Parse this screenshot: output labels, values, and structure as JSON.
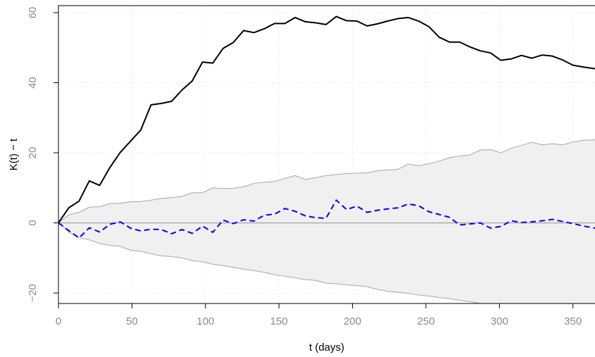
{
  "chart_data": {
    "type": "line",
    "title": "",
    "xlabel": "t (days)",
    "ylabel": "K(t) − t",
    "xlim": [
      0,
      365
    ],
    "ylim": [
      -23,
      62
    ],
    "x_ticks": [
      0,
      50,
      100,
      150,
      200,
      250,
      300,
      350
    ],
    "x_tick_labels": [
      "0",
      "50",
      "100",
      "150",
      "200",
      "250",
      "300",
      "350"
    ],
    "y_ticks": [
      -20,
      0,
      20,
      40,
      60
    ],
    "y_tick_labels": [
      "−20",
      "0",
      "20",
      "40",
      "60"
    ],
    "grid": true,
    "legend": "none",
    "reference_line": {
      "y": 0,
      "color": "#a6a6a6"
    },
    "envelope": {
      "fill": "#f0f0f0",
      "stroke": "#a6a6a6",
      "upper": [
        [
          0,
          0
        ],
        [
          7,
          2.3
        ],
        [
          14,
          3.0
        ],
        [
          21,
          4.5
        ],
        [
          28,
          4.6
        ],
        [
          35,
          5.5
        ],
        [
          42,
          5.6
        ],
        [
          49,
          6.0
        ],
        [
          56,
          6.1
        ],
        [
          63,
          6.5
        ],
        [
          70,
          7.0
        ],
        [
          77,
          7.2
        ],
        [
          84,
          7.6
        ],
        [
          91,
          8.6
        ],
        [
          98,
          8.6
        ],
        [
          105,
          10.0
        ],
        [
          112,
          9.8
        ],
        [
          119,
          9.9
        ],
        [
          126,
          10.3
        ],
        [
          133,
          11.3
        ],
        [
          140,
          11.6
        ],
        [
          147,
          11.8
        ],
        [
          154,
          12.7
        ],
        [
          161,
          13.5
        ],
        [
          168,
          12.4
        ],
        [
          175,
          12.9
        ],
        [
          182,
          13.5
        ],
        [
          189,
          13.8
        ],
        [
          196,
          14.1
        ],
        [
          203,
          14.2
        ],
        [
          210,
          14.3
        ],
        [
          217,
          14.9
        ],
        [
          224,
          15.1
        ],
        [
          231,
          15.3
        ],
        [
          238,
          16.8
        ],
        [
          245,
          16.3
        ],
        [
          252,
          16.9
        ],
        [
          259,
          17.6
        ],
        [
          266,
          18.6
        ],
        [
          273,
          19.1
        ],
        [
          280,
          19.4
        ],
        [
          287,
          20.8
        ],
        [
          294,
          20.9
        ],
        [
          301,
          20.0
        ],
        [
          308,
          21.3
        ],
        [
          315,
          22.1
        ],
        [
          322,
          23.0
        ],
        [
          329,
          22.3
        ],
        [
          336,
          22.6
        ],
        [
          343,
          22.3
        ],
        [
          350,
          23.1
        ],
        [
          357,
          23.6
        ],
        [
          365,
          23.7
        ]
      ],
      "lower": [
        [
          0,
          0
        ],
        [
          7,
          -2.6
        ],
        [
          14,
          -4.3
        ],
        [
          21,
          -4.8
        ],
        [
          28,
          -5.9
        ],
        [
          35,
          -6.4
        ],
        [
          42,
          -6.7
        ],
        [
          49,
          -7.8
        ],
        [
          56,
          -8.1
        ],
        [
          63,
          -8.8
        ],
        [
          70,
          -9.4
        ],
        [
          77,
          -9.6
        ],
        [
          84,
          -10.0
        ],
        [
          91,
          -10.8
        ],
        [
          98,
          -11.1
        ],
        [
          105,
          -11.8
        ],
        [
          112,
          -12.2
        ],
        [
          119,
          -12.7
        ],
        [
          126,
          -13.2
        ],
        [
          133,
          -13.6
        ],
        [
          140,
          -14.1
        ],
        [
          147,
          -14.8
        ],
        [
          154,
          -15.2
        ],
        [
          161,
          -15.7
        ],
        [
          168,
          -16.2
        ],
        [
          175,
          -16.4
        ],
        [
          182,
          -17.2
        ],
        [
          189,
          -17.4
        ],
        [
          196,
          -17.7
        ],
        [
          203,
          -17.9
        ],
        [
          210,
          -18.2
        ],
        [
          217,
          -19.0
        ],
        [
          224,
          -19.5
        ],
        [
          231,
          -19.8
        ],
        [
          238,
          -20.1
        ],
        [
          245,
          -20.6
        ],
        [
          252,
          -20.9
        ],
        [
          259,
          -21.3
        ],
        [
          266,
          -21.6
        ],
        [
          273,
          -22.1
        ],
        [
          280,
          -22.5
        ],
        [
          287,
          -23.0
        ],
        [
          294,
          -23.5
        ],
        [
          301,
          -24.0
        ],
        [
          308,
          -24.5
        ],
        [
          315,
          -25.0
        ],
        [
          322,
          -25.5
        ],
        [
          329,
          -26.0
        ],
        [
          336,
          -26.5
        ],
        [
          343,
          -27.0
        ],
        [
          350,
          -27.5
        ],
        [
          357,
          -28.0
        ],
        [
          365,
          -28.5
        ]
      ]
    },
    "series": [
      {
        "style": "solid",
        "color": "#000000",
        "points": [
          [
            0,
            0
          ],
          [
            7,
            4.3
          ],
          [
            14,
            6.2
          ],
          [
            21,
            12.0
          ],
          [
            28,
            10.7
          ],
          [
            35,
            15.8
          ],
          [
            42,
            20.1
          ],
          [
            49,
            23.3
          ],
          [
            56,
            26.5
          ],
          [
            63,
            33.7
          ],
          [
            70,
            34.1
          ],
          [
            77,
            34.7
          ],
          [
            84,
            37.9
          ],
          [
            91,
            40.5
          ],
          [
            98,
            45.9
          ],
          [
            105,
            45.6
          ],
          [
            112,
            49.8
          ],
          [
            119,
            51.5
          ],
          [
            126,
            54.9
          ],
          [
            133,
            54.3
          ],
          [
            140,
            55.4
          ],
          [
            147,
            56.9
          ],
          [
            154,
            56.9
          ],
          [
            161,
            58.6
          ],
          [
            168,
            57.4
          ],
          [
            175,
            57.1
          ],
          [
            182,
            56.6
          ],
          [
            189,
            58.9
          ],
          [
            196,
            57.7
          ],
          [
            203,
            57.6
          ],
          [
            210,
            56.2
          ],
          [
            217,
            56.8
          ],
          [
            224,
            57.6
          ],
          [
            231,
            58.3
          ],
          [
            238,
            58.6
          ],
          [
            245,
            57.6
          ],
          [
            252,
            56.0
          ],
          [
            259,
            53.0
          ],
          [
            266,
            51.6
          ],
          [
            273,
            51.6
          ],
          [
            280,
            50.2
          ],
          [
            287,
            49.1
          ],
          [
            294,
            48.5
          ],
          [
            301,
            46.4
          ],
          [
            308,
            46.8
          ],
          [
            315,
            47.8
          ],
          [
            322,
            47.0
          ],
          [
            329,
            47.9
          ],
          [
            336,
            47.6
          ],
          [
            343,
            46.5
          ],
          [
            350,
            45.0
          ],
          [
            357,
            44.5
          ],
          [
            365,
            44.0
          ]
        ]
      },
      {
        "style": "dashed",
        "color": "#0000ff",
        "points": [
          [
            0,
            0
          ],
          [
            7,
            -2.2
          ],
          [
            14,
            -4.3
          ],
          [
            21,
            -1.4
          ],
          [
            28,
            -2.6
          ],
          [
            35,
            -0.4
          ],
          [
            42,
            0.3
          ],
          [
            49,
            -1.5
          ],
          [
            56,
            -2.3
          ],
          [
            63,
            -1.8
          ],
          [
            70,
            -1.9
          ],
          [
            77,
            -3.1
          ],
          [
            84,
            -1.9
          ],
          [
            91,
            -3.0
          ],
          [
            98,
            -0.9
          ],
          [
            105,
            -2.7
          ],
          [
            112,
            0.8
          ],
          [
            119,
            -0.2
          ],
          [
            126,
            0.9
          ],
          [
            133,
            0.5
          ],
          [
            140,
            2.2
          ],
          [
            147,
            2.5
          ],
          [
            154,
            4.1
          ],
          [
            161,
            3.3
          ],
          [
            168,
            2.0
          ],
          [
            175,
            1.5
          ],
          [
            182,
            1.3
          ],
          [
            189,
            6.5
          ],
          [
            196,
            3.8
          ],
          [
            203,
            4.8
          ],
          [
            210,
            3.0
          ],
          [
            217,
            3.6
          ],
          [
            224,
            4.0
          ],
          [
            231,
            4.3
          ],
          [
            238,
            5.4
          ],
          [
            245,
            4.9
          ],
          [
            252,
            3.2
          ],
          [
            259,
            2.4
          ],
          [
            266,
            1.6
          ],
          [
            273,
            -0.6
          ],
          [
            280,
            -0.3
          ],
          [
            287,
            0.0
          ],
          [
            294,
            -1.5
          ],
          [
            301,
            -1.0
          ],
          [
            308,
            0.6
          ],
          [
            315,
            0.1
          ],
          [
            322,
            0.3
          ],
          [
            329,
            0.6
          ],
          [
            336,
            1.0
          ],
          [
            343,
            0.4
          ],
          [
            350,
            -0.2
          ],
          [
            357,
            -0.9
          ],
          [
            365,
            -1.5
          ]
        ]
      }
    ]
  }
}
